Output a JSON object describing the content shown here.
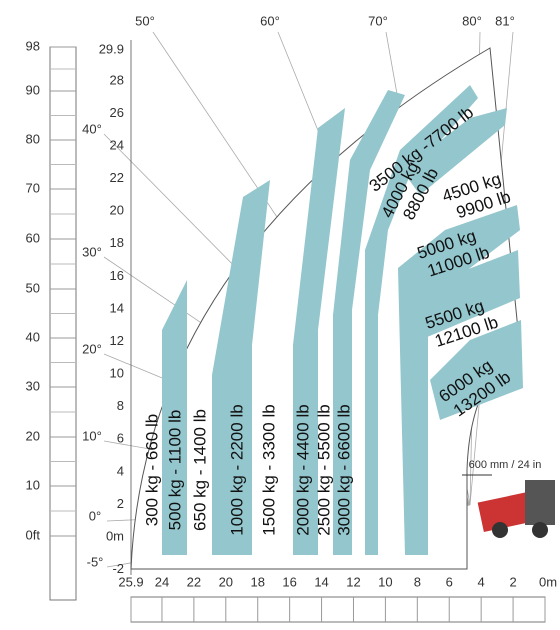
{
  "feet_ticks": [
    "98",
    "90",
    "80",
    "70",
    "60",
    "50",
    "40",
    "30",
    "20",
    "10",
    "0ft"
  ],
  "height_ticks": [
    "29.9",
    "28",
    "26",
    "24",
    "22",
    "20",
    "18",
    "16",
    "14",
    "12",
    "10",
    "8",
    "6",
    "4",
    "2",
    "0m",
    "-2"
  ],
  "reach_ticks": [
    "25.9",
    "24",
    "22",
    "20",
    "18",
    "16",
    "14",
    "12",
    "10",
    "8",
    "6",
    "4",
    "2",
    "0m"
  ],
  "angles_top": [
    "50°",
    "60°",
    "70°",
    "80°",
    "81°"
  ],
  "angles_left": [
    "40°",
    "30°",
    "20°",
    "10°",
    "0°",
    "-5°"
  ],
  "vertical_loads": [
    "300 kg - 660 lb",
    "500 kg - 1100 lb",
    "650 kg - 1400 lb",
    "1000 kg - 2200 lb",
    "1500 kg - 3300 lb",
    "2000 kg - 4400 lb",
    "2500 kg - 5500 lb",
    "3000 kg - 6600 lb"
  ],
  "diagonal_loads": [
    [
      "3500 kg -7700 lb"
    ],
    [
      "4000 kg",
      "8800 lb"
    ],
    [
      "4500 kg",
      "9900 lb"
    ],
    [
      "5000 kg",
      "11000 lb"
    ],
    [
      "5500 kg",
      "12100 lb"
    ],
    [
      "6000 kg",
      "13200 lb"
    ]
  ],
  "clearance": "600 mm / 24 in"
}
